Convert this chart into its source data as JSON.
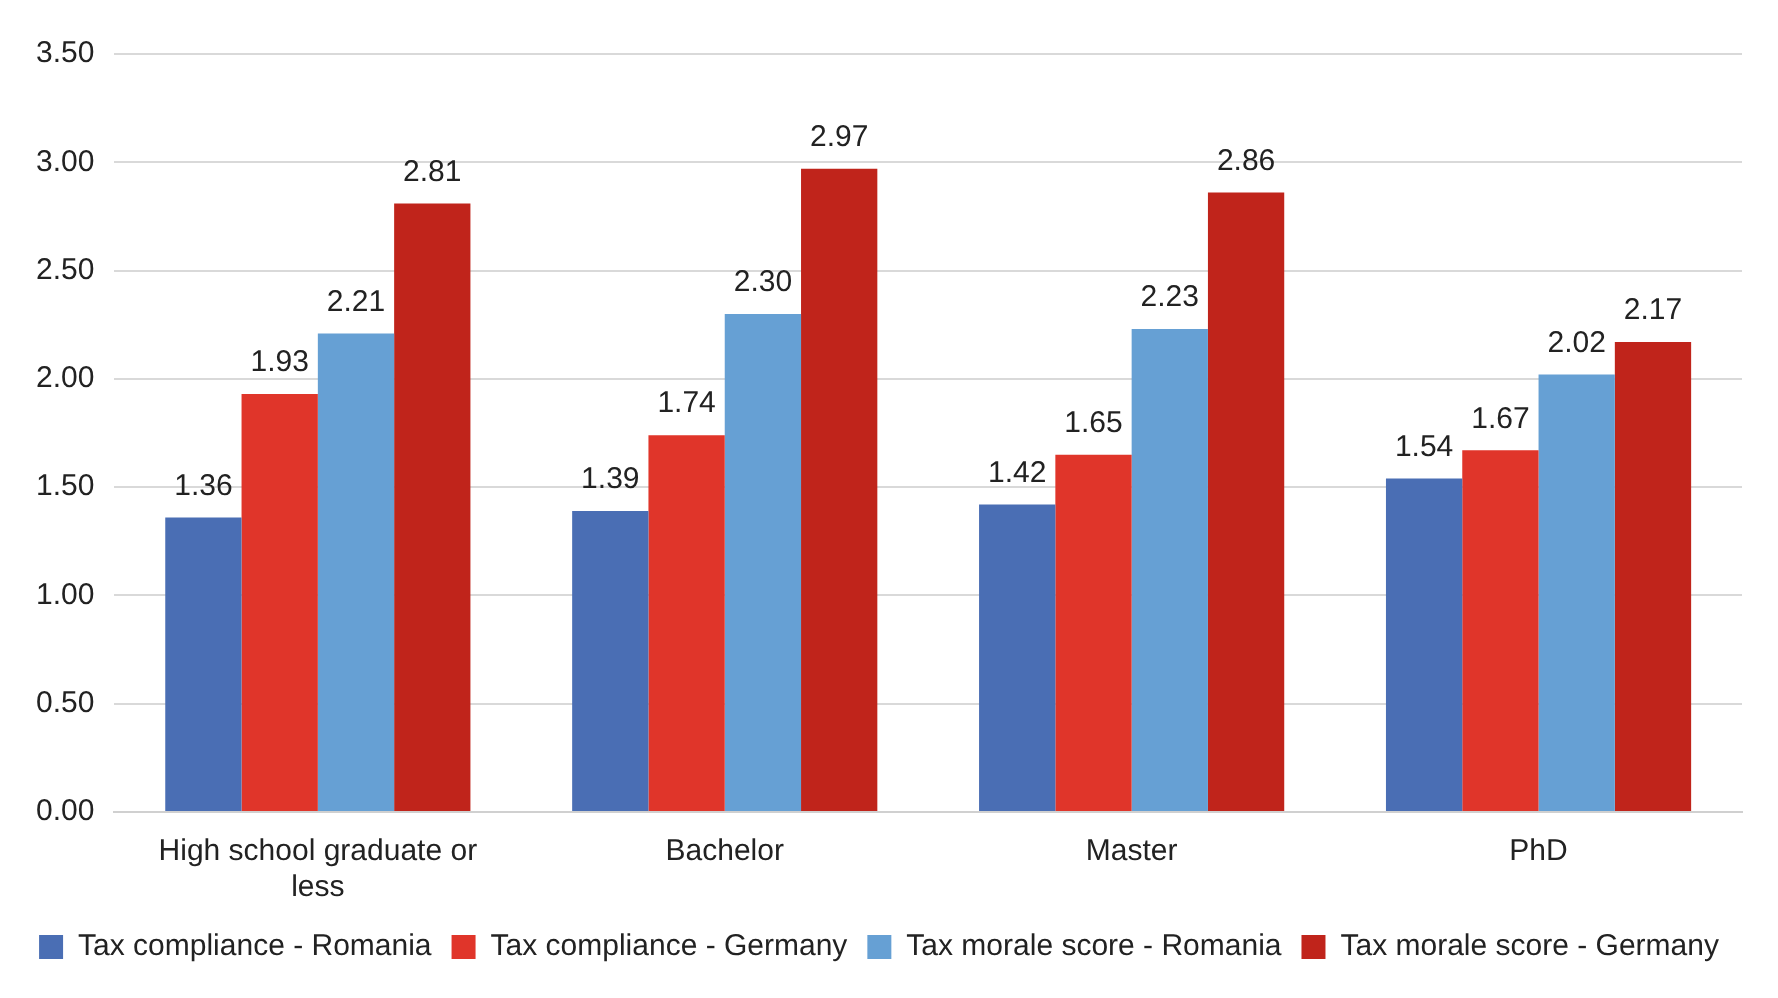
{
  "chart_data": {
    "type": "bar",
    "categories": [
      "High school graduate or less",
      "Bachelor",
      "Master",
      "PhD"
    ],
    "series": [
      {
        "name": "Tax compliance - Romania",
        "color": "#4a6eb4",
        "values": [
          1.36,
          1.39,
          1.42,
          1.54
        ],
        "value_labels": [
          "1.36",
          "1.39",
          "1.42",
          "1.54"
        ]
      },
      {
        "name": "Tax compliance - Germany",
        "color": "#e0352a",
        "values": [
          1.93,
          1.74,
          1.65,
          1.67
        ],
        "value_labels": [
          "1.93",
          "1.74",
          "1.65",
          "1.67"
        ]
      },
      {
        "name": "Tax morale score - Romania",
        "color": "#66a0d4",
        "values": [
          2.21,
          2.3,
          2.23,
          2.02
        ],
        "value_labels": [
          "2.21",
          "2.30",
          "2.23",
          "2.02"
        ]
      },
      {
        "name": "Tax morale score - Germany",
        "color": "#c0241b",
        "values": [
          2.81,
          2.97,
          2.86,
          2.17
        ],
        "value_labels": [
          "2.81",
          "2.97",
          "2.86",
          "2.17"
        ]
      }
    ],
    "ylim": [
      0,
      3.5
    ],
    "yticks": [
      {
        "value": 0,
        "label": "0.00"
      },
      {
        "value": 0.5,
        "label": "0.50"
      },
      {
        "value": 1,
        "label": "1.00"
      },
      {
        "value": 1.5,
        "label": "1.50"
      },
      {
        "value": 2,
        "label": "2.00"
      },
      {
        "value": 2.5,
        "label": "2.50"
      },
      {
        "value": 3,
        "label": "3.00"
      },
      {
        "value": 3.5,
        "label": "3.50"
      }
    ],
    "grid": "y",
    "legend": "bottom"
  }
}
